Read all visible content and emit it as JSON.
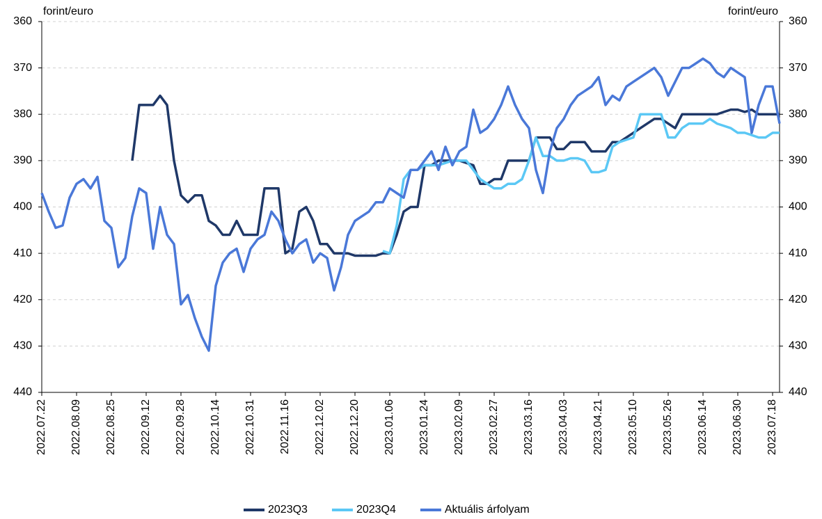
{
  "chart_data": {
    "type": "line",
    "y_label": "forint/euro",
    "y2_label": "forint/euro",
    "categories": [
      "2022.07.22",
      null,
      null,
      null,
      null,
      "2022.08.09",
      null,
      null,
      null,
      null,
      "2022.08.25",
      null,
      null,
      null,
      null,
      "2022.09.12",
      null,
      null,
      null,
      null,
      "2022.09.28",
      null,
      null,
      null,
      null,
      "2022.10.14",
      null,
      null,
      null,
      null,
      "2022.10.31",
      null,
      null,
      null,
      null,
      "2022.11.16",
      null,
      null,
      null,
      null,
      "2022.12.02",
      null,
      null,
      null,
      null,
      "2022.12.20",
      null,
      null,
      null,
      null,
      "2023.01.06",
      null,
      null,
      null,
      null,
      "2023.01.24",
      null,
      null,
      null,
      null,
      "2023.02.09",
      null,
      null,
      null,
      null,
      "2023.02.27",
      null,
      null,
      null,
      null,
      "2023.03.16",
      null,
      null,
      null,
      null,
      "2023.04.03",
      null,
      null,
      null,
      null,
      "2023.04.21",
      null,
      null,
      null,
      null,
      "2023.05.10",
      null,
      null,
      null,
      null,
      "2023.05.26",
      null,
      null,
      null,
      null,
      "2023.06.14",
      null,
      null,
      null,
      null,
      "2023.06.30",
      null,
      null,
      null,
      null,
      "2023.07.18",
      null
    ],
    "series": [
      {
        "name": "2023Q3",
        "color": "#1f3868",
        "values": [
          null,
          null,
          null,
          null,
          null,
          null,
          null,
          null,
          null,
          null,
          null,
          null,
          null,
          390,
          378,
          378,
          378,
          376,
          378,
          390,
          397.5,
          399,
          397.5,
          397.5,
          403,
          404,
          406,
          406,
          403,
          406,
          406,
          406,
          396,
          396,
          396,
          410,
          409,
          401,
          400,
          403,
          408,
          408,
          410,
          410,
          410,
          410.5,
          410.5,
          410.5,
          410.5,
          410,
          410,
          406,
          401,
          400,
          400,
          391,
          391,
          390,
          390,
          390,
          390,
          390.5,
          391,
          395,
          395,
          394,
          394,
          390,
          390,
          390,
          390,
          385,
          385,
          385,
          387.5,
          387.5,
          386,
          386,
          386,
          388,
          388,
          388,
          386,
          386,
          385,
          384,
          383,
          382,
          381,
          381,
          382,
          383,
          380,
          380,
          380,
          380,
          380,
          380,
          379.5,
          379,
          379,
          379.5,
          379,
          380,
          380,
          380,
          380
        ]
      },
      {
        "name": "2023Q4",
        "color": "#5bc8f5",
        "values": [
          null,
          null,
          null,
          null,
          null,
          null,
          null,
          null,
          null,
          null,
          null,
          null,
          null,
          null,
          null,
          null,
          null,
          null,
          null,
          null,
          null,
          null,
          null,
          null,
          null,
          null,
          null,
          null,
          null,
          null,
          null,
          null,
          null,
          null,
          null,
          null,
          null,
          null,
          null,
          null,
          null,
          null,
          null,
          null,
          null,
          null,
          null,
          null,
          null,
          409.5,
          410,
          404,
          394,
          392,
          392,
          391,
          391,
          391,
          390.5,
          390,
          390,
          390,
          392,
          394,
          395,
          396,
          396,
          395,
          395,
          394,
          390,
          385,
          389,
          389,
          390,
          390,
          389.5,
          389.5,
          390,
          392.5,
          392.5,
          392,
          387,
          386,
          385.5,
          385,
          380,
          380,
          380,
          380,
          385,
          385,
          383,
          382,
          382,
          382,
          381,
          382,
          382.5,
          383,
          384,
          384,
          384.5,
          385,
          385,
          384,
          384
        ]
      },
      {
        "name": "Aktuális árfolyam",
        "color": "#4a78d8",
        "values": [
          397,
          401,
          404.5,
          404,
          398,
          395,
          394,
          396,
          393.5,
          403,
          404.5,
          413,
          411,
          402,
          396,
          397,
          409,
          400,
          406,
          408,
          421,
          419,
          424,
          428,
          431,
          417,
          412,
          410,
          409,
          414,
          409,
          407,
          406,
          401,
          403,
          407,
          410,
          408,
          407,
          412,
          410,
          411,
          418,
          413,
          406,
          403,
          402,
          401,
          399,
          399,
          396,
          397,
          398,
          392,
          392,
          390,
          388,
          392,
          387,
          391,
          388,
          387,
          379,
          384,
          383,
          381,
          378,
          374,
          378,
          381,
          383,
          392,
          397,
          388,
          383,
          381,
          378,
          376,
          375,
          374,
          372,
          378,
          376,
          377,
          374,
          373,
          372,
          371,
          370,
          372,
          376,
          373,
          370,
          370,
          369,
          368,
          369,
          371,
          372,
          370,
          371,
          372,
          384,
          378,
          374,
          374,
          382
        ]
      }
    ],
    "ylim": [
      440,
      360
    ],
    "yticks": [
      360,
      370,
      380,
      390,
      400,
      410,
      420,
      430,
      440
    ],
    "y2lim": [
      440,
      360
    ],
    "y2ticks": [
      360,
      370,
      380,
      390,
      400,
      410,
      420,
      430,
      440
    ],
    "grid": true,
    "legend": "bottom"
  }
}
